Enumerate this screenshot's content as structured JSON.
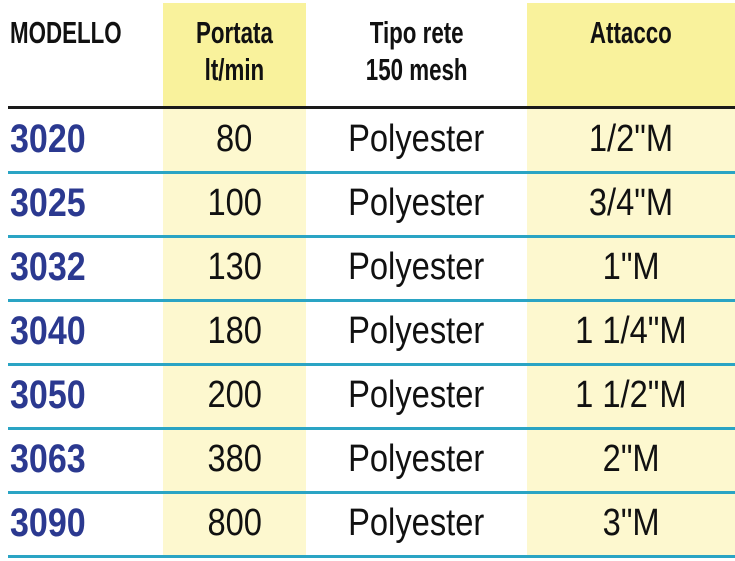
{
  "headers": {
    "model": "MODELLO",
    "flow": [
      "Portata",
      "lt/min"
    ],
    "mesh": [
      "Tipo rete",
      "150 mesh"
    ],
    "connection": "Attacco"
  },
  "colors": {
    "header_highlight": "#f9f29c",
    "column_highlight": "#fdf8cf",
    "model_text": "#2b3990",
    "row_divider": "#2aa4c4"
  },
  "rows": [
    {
      "model": "3020",
      "flow": "80",
      "mesh": "Polyester",
      "connection": "1/2\"M"
    },
    {
      "model": "3025",
      "flow": "100",
      "mesh": "Polyester",
      "connection": "3/4\"M"
    },
    {
      "model": "3032",
      "flow": "130",
      "mesh": "Polyester",
      "connection": "1\"M"
    },
    {
      "model": "3040",
      "flow": "180",
      "mesh": "Polyester",
      "connection": "1 1/4\"M"
    },
    {
      "model": "3050",
      "flow": "200",
      "mesh": "Polyester",
      "connection": "1 1/2\"M"
    },
    {
      "model": "3063",
      "flow": "380",
      "mesh": "Polyester",
      "connection": "2\"M"
    },
    {
      "model": "3090",
      "flow": "800",
      "mesh": "Polyester",
      "connection": "3\"M"
    }
  ]
}
